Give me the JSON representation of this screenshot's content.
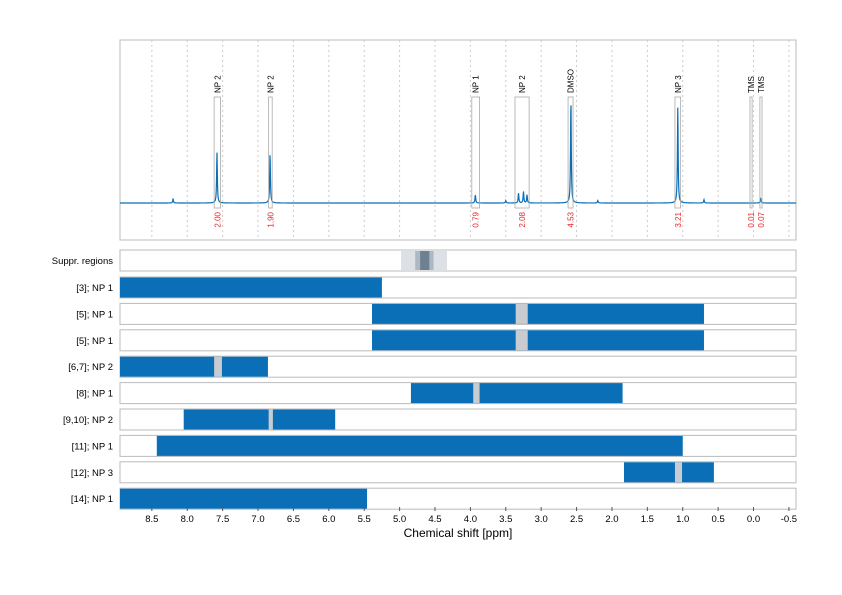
{
  "chart_data": {
    "type": "line",
    "xlabel": "Chemical shift [ppm]",
    "xlim": [
      8.95,
      -0.6
    ],
    "x_ticks": [
      8.5,
      8.0,
      7.5,
      7.0,
      6.5,
      6.0,
      5.5,
      5.0,
      4.5,
      4.0,
      3.5,
      3.0,
      2.5,
      2.0,
      1.5,
      1.0,
      0.5,
      0.0,
      -0.5
    ],
    "x_tick_labels": [
      "8.5",
      "8.0",
      "7.5",
      "7.0",
      "6.5",
      "6.0",
      "5.5",
      "5.0",
      "4.5",
      "4.0",
      "3.5",
      "3.0",
      "2.5",
      "2.0",
      "1.5",
      "1.0",
      "0.5",
      "0.0",
      "-0.5"
    ],
    "grid": "vertical dashed, every 0.5 ppm (spectrum panel)",
    "spectrum": {
      "color": "#0a6fb7",
      "peaks": [
        {
          "ppm": 8.2,
          "intensity": 0.025
        },
        {
          "ppm": 7.58,
          "intensity": 0.31
        },
        {
          "ppm": 6.83,
          "intensity": 0.3
        },
        {
          "ppm": 3.93,
          "intensity": 0.05
        },
        {
          "ppm": 3.32,
          "intensity": 0.06
        },
        {
          "ppm": 3.25,
          "intensity": 0.07
        },
        {
          "ppm": 3.2,
          "intensity": 0.05
        },
        {
          "ppm": 3.5,
          "intensity": 0.015
        },
        {
          "ppm": 2.58,
          "intensity": 0.63
        },
        {
          "ppm": 2.2,
          "intensity": 0.015
        },
        {
          "ppm": 1.07,
          "intensity": 0.59
        },
        {
          "ppm": 0.7,
          "intensity": 0.02
        },
        {
          "ppm": -0.1,
          "intensity": 0.03
        }
      ]
    },
    "annotations": [
      {
        "label": "NP 2",
        "from": 7.62,
        "to": 7.53,
        "integral": "2.00"
      },
      {
        "label": "NP 2",
        "from": 6.85,
        "to": 6.8,
        "integral": "1.90"
      },
      {
        "label": "NP 1",
        "from": 3.98,
        "to": 3.87,
        "integral": "0.79"
      },
      {
        "label": "NP 2",
        "from": 3.37,
        "to": 3.17,
        "integral": "2.08"
      },
      {
        "label": "DMSO",
        "from": 2.62,
        "to": 2.55,
        "integral": "4.53"
      },
      {
        "label": "NP 3",
        "from": 1.11,
        "to": 1.03,
        "integral": "3.21"
      },
      {
        "label": "TMS",
        "from": 0.05,
        "to": 0.02,
        "integral": "0.01"
      },
      {
        "label": "TMS",
        "from": -0.09,
        "to": -0.12,
        "integral": "0.07"
      }
    ],
    "suppression": {
      "label": "Suppr. regions",
      "outer": [
        4.98,
        4.33
      ],
      "middle": [
        4.78,
        4.52
      ],
      "inner": [
        4.71,
        4.58
      ]
    },
    "rows": [
      {
        "label": "[3]; NP 1",
        "from": 8.95,
        "to": 5.25,
        "marker": null
      },
      {
        "label": "[5]; NP 1",
        "from": 5.39,
        "to": 0.7,
        "marker": [
          3.36,
          3.19
        ]
      },
      {
        "label": "[5]; NP 1",
        "from": 5.39,
        "to": 0.7,
        "marker": [
          3.36,
          3.19
        ]
      },
      {
        "label": "[6,7]; NP 2",
        "from": 8.95,
        "to": 6.86,
        "marker": [
          7.62,
          7.51
        ]
      },
      {
        "label": "[8]; NP 1",
        "from": 4.84,
        "to": 1.85,
        "marker": [
          3.96,
          3.87
        ]
      },
      {
        "label": "[9,10]; NP 2",
        "from": 8.05,
        "to": 5.91,
        "marker": [
          6.85,
          6.79
        ]
      },
      {
        "label": "[11]; NP 1",
        "from": 8.43,
        "to": 1.0,
        "marker": null
      },
      {
        "label": "[12]; NP 3",
        "from": 1.83,
        "to": 0.56,
        "marker": [
          1.11,
          1.01
        ]
      },
      {
        "label": "[14]; NP 1",
        "from": 8.95,
        "to": 5.46,
        "marker": null
      }
    ],
    "colors": {
      "bar": "#0a6fb7",
      "marker": "#c8ccd0",
      "integral": "#e8262a",
      "frame": "#bbbbbb"
    }
  }
}
